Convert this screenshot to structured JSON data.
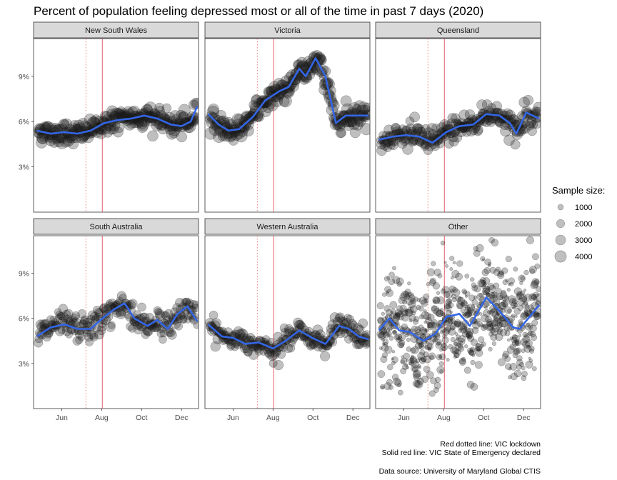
{
  "chart_data": {
    "type": "scatter",
    "title": "Percent of population feeling depressed most or all of the time in past 7 days (2020)",
    "x_ticks": [
      "Jun",
      "Aug",
      "Oct",
      "Dec"
    ],
    "x_tick_dates": [
      "2020-06-01",
      "2020-08-01",
      "2020-10-01",
      "2020-12-01"
    ],
    "xlim": [
      "2020-04-19",
      "2020-12-27"
    ],
    "y_ticks": [
      "3%",
      "6%",
      "9%"
    ],
    "y_tick_values": [
      3,
      6,
      9
    ],
    "ylim": [
      0,
      11.5
    ],
    "vlines": {
      "vic_lockdown": {
        "date": "2020-07-08",
        "color": "#f08080",
        "style": "dotted"
      },
      "vic_state_of_emergency": {
        "date": "2020-08-02",
        "color": "#e0505a",
        "style": "solid"
      }
    },
    "legend": {
      "title": "Sample size:",
      "placement": "right",
      "entries": [
        {
          "label": "1000",
          "value": 1000
        },
        {
          "label": "2000",
          "value": 2000
        },
        {
          "label": "3000",
          "value": 3000
        },
        {
          "label": "4000",
          "value": 4000
        }
      ]
    },
    "colors": {
      "points": "#1a1a1a",
      "smooth": "#3366e6",
      "strip": "#d9d9d9"
    },
    "panels": [
      {
        "name": "New South Wales",
        "sample_size": 3500,
        "noise": 0.35,
        "smooth": [
          [
            "2020-04-24",
            5.4
          ],
          [
            "2020-05-15",
            5.2
          ],
          [
            "2020-06-05",
            5.3
          ],
          [
            "2020-06-25",
            5.2
          ],
          [
            "2020-07-15",
            5.4
          ],
          [
            "2020-08-05",
            5.9
          ],
          [
            "2020-08-25",
            6.1
          ],
          [
            "2020-09-15",
            6.2
          ],
          [
            "2020-10-05",
            6.4
          ],
          [
            "2020-10-25",
            6.2
          ],
          [
            "2020-11-15",
            5.8
          ],
          [
            "2020-12-01",
            5.7
          ],
          [
            "2020-12-15",
            6.0
          ],
          [
            "2020-12-25",
            7.0
          ]
        ]
      },
      {
        "name": "Victoria",
        "sample_size": 3600,
        "noise": 0.4,
        "smooth": [
          [
            "2020-04-24",
            6.5
          ],
          [
            "2020-05-10",
            5.8
          ],
          [
            "2020-05-25",
            5.4
          ],
          [
            "2020-06-10",
            5.5
          ],
          [
            "2020-07-01",
            6.3
          ],
          [
            "2020-07-20",
            7.4
          ],
          [
            "2020-08-10",
            8.0
          ],
          [
            "2020-08-25",
            8.3
          ],
          [
            "2020-09-10",
            9.5
          ],
          [
            "2020-09-20",
            9.0
          ],
          [
            "2020-10-05",
            10.2
          ],
          [
            "2020-10-20",
            9.0
          ],
          [
            "2020-11-05",
            5.9
          ],
          [
            "2020-11-20",
            6.4
          ],
          [
            "2020-12-10",
            6.4
          ],
          [
            "2020-12-25",
            6.4
          ]
        ]
      },
      {
        "name": "Queensland",
        "sample_size": 2800,
        "noise": 0.4,
        "smooth": [
          [
            "2020-04-24",
            4.8
          ],
          [
            "2020-05-15",
            5.0
          ],
          [
            "2020-06-05",
            5.1
          ],
          [
            "2020-06-25",
            5.0
          ],
          [
            "2020-07-15",
            4.6
          ],
          [
            "2020-08-05",
            5.3
          ],
          [
            "2020-08-25",
            5.7
          ],
          [
            "2020-09-15",
            5.8
          ],
          [
            "2020-10-05",
            6.5
          ],
          [
            "2020-10-25",
            6.4
          ],
          [
            "2020-11-10",
            5.9
          ],
          [
            "2020-11-20",
            5.2
          ],
          [
            "2020-12-05",
            6.6
          ],
          [
            "2020-12-25",
            6.2
          ]
        ]
      },
      {
        "name": "South Australia",
        "sample_size": 2200,
        "noise": 0.45,
        "smooth": [
          [
            "2020-04-24",
            4.8
          ],
          [
            "2020-05-15",
            5.4
          ],
          [
            "2020-06-05",
            5.6
          ],
          [
            "2020-06-25",
            5.3
          ],
          [
            "2020-07-15",
            5.3
          ],
          [
            "2020-08-05",
            6.1
          ],
          [
            "2020-08-20",
            6.6
          ],
          [
            "2020-09-05",
            7.0
          ],
          [
            "2020-09-20",
            6.0
          ],
          [
            "2020-10-10",
            5.5
          ],
          [
            "2020-10-25",
            5.9
          ],
          [
            "2020-11-10",
            5.3
          ],
          [
            "2020-11-25",
            6.3
          ],
          [
            "2020-12-10",
            6.8
          ],
          [
            "2020-12-25",
            5.8
          ]
        ]
      },
      {
        "name": "Western Australia",
        "sample_size": 2400,
        "noise": 0.35,
        "smooth": [
          [
            "2020-04-24",
            5.6
          ],
          [
            "2020-05-15",
            4.8
          ],
          [
            "2020-06-01",
            4.7
          ],
          [
            "2020-06-20",
            4.3
          ],
          [
            "2020-07-10",
            4.4
          ],
          [
            "2020-08-01",
            4.0
          ],
          [
            "2020-08-20",
            4.5
          ],
          [
            "2020-09-10",
            5.2
          ],
          [
            "2020-09-30",
            4.7
          ],
          [
            "2020-10-20",
            4.3
          ],
          [
            "2020-11-10",
            5.5
          ],
          [
            "2020-11-25",
            5.3
          ],
          [
            "2020-12-10",
            4.8
          ],
          [
            "2020-12-25",
            4.6
          ]
        ]
      },
      {
        "name": "Other",
        "sample_size": 900,
        "noise": 1.7,
        "smooth": [
          [
            "2020-04-24",
            5.2
          ],
          [
            "2020-05-10",
            6.0
          ],
          [
            "2020-05-25",
            5.2
          ],
          [
            "2020-06-10",
            5.1
          ],
          [
            "2020-07-01",
            4.5
          ],
          [
            "2020-07-20",
            5.0
          ],
          [
            "2020-08-05",
            6.1
          ],
          [
            "2020-08-25",
            6.3
          ],
          [
            "2020-09-10",
            5.5
          ],
          [
            "2020-10-05",
            7.4
          ],
          [
            "2020-10-25",
            6.5
          ],
          [
            "2020-11-15",
            5.4
          ],
          [
            "2020-11-25",
            5.3
          ],
          [
            "2020-12-10",
            6.1
          ],
          [
            "2020-12-25",
            6.9
          ]
        ]
      }
    ]
  },
  "caption": {
    "line1": "Red dotted line: VIC lockdown",
    "line2": "Solid red line: VIC State of Emergency declared",
    "line3": "Data source: University of Maryland Global CTIS"
  }
}
